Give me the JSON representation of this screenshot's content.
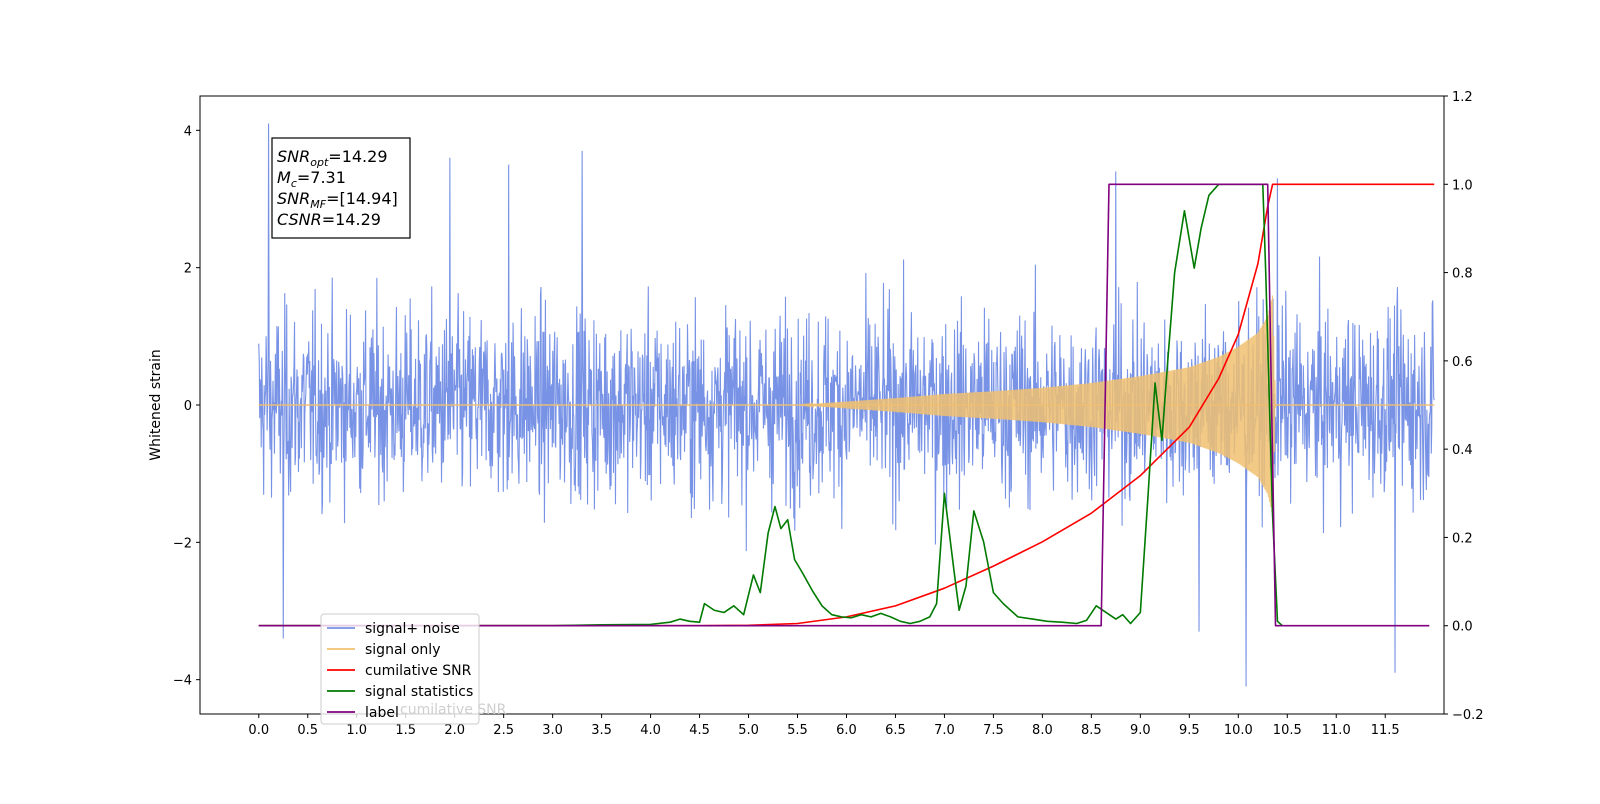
{
  "chart_data": {
    "type": "line",
    "title": "",
    "xlabel": "",
    "ylabel": "Whitened strain",
    "xlim": [
      -0.6,
      12.1
    ],
    "ylim": [
      -4.5,
      4.5
    ],
    "y2lim": [
      -0.2,
      1.2
    ],
    "x_ticks": [
      "0.0",
      "0.5",
      "1.0",
      "1.5",
      "2.0",
      "2.5",
      "3.0",
      "3.5",
      "4.0",
      "4.5",
      "5.0",
      "5.5",
      "6.0",
      "6.5",
      "7.0",
      "7.5",
      "8.0",
      "8.5",
      "9.0",
      "9.5",
      "10.0",
      "10.5",
      "11.0",
      "11.5"
    ],
    "y_ticks": [
      "4",
      "2",
      "0",
      "−2",
      "−4"
    ],
    "y_tick_values": [
      4,
      2,
      0,
      -2,
      -4
    ],
    "y2_ticks": [
      "1.2",
      "1.0",
      "0.8",
      "0.6",
      "0.4",
      "0.2",
      "0.0",
      "−0.2"
    ],
    "y2_tick_values": [
      1.2,
      1.0,
      0.8,
      0.6,
      0.4,
      0.2,
      0.0,
      -0.2
    ],
    "grid": false,
    "legend_position": "lower-left",
    "annotation": {
      "lines": [
        {
          "base": "SNR",
          "sub": "opt",
          "value": "=14.29"
        },
        {
          "base": "M",
          "sub": "c",
          "value": "=7.31"
        },
        {
          "base": "SNR",
          "sub": "MF",
          "value": "=[14.94]"
        },
        {
          "base": "CSNR",
          "sub": "",
          "value": "=14.29"
        }
      ]
    },
    "series": [
      {
        "name": "signal+ noise",
        "color": "#7893e6",
        "axis": "left",
        "style": "noise",
        "x_range": [
          0.0,
          12.0
        ],
        "typical_envelope": [
          -1.9,
          1.9
        ],
        "notable_peaks": [
          [
            0.1,
            4.1
          ],
          [
            0.25,
            -3.4
          ],
          [
            1.95,
            3.6
          ],
          [
            2.55,
            3.5
          ],
          [
            3.3,
            3.7
          ],
          [
            9.6,
            -3.3
          ],
          [
            10.08,
            -4.1
          ],
          [
            10.4,
            3.3
          ],
          [
            11.6,
            -3.9
          ],
          [
            8.75,
            3.4
          ]
        ]
      },
      {
        "name": "signal only",
        "color": "#f0c070",
        "axis": "left",
        "style": "chirp",
        "x_range": [
          0.0,
          12.0
        ],
        "envelope": [
          [
            5.5,
            0.0
          ],
          [
            6.0,
            0.05
          ],
          [
            6.5,
            0.1
          ],
          [
            7.0,
            0.16
          ],
          [
            7.5,
            0.2
          ],
          [
            8.0,
            0.25
          ],
          [
            8.5,
            0.32
          ],
          [
            9.0,
            0.42
          ],
          [
            9.5,
            0.55
          ],
          [
            9.8,
            0.7
          ],
          [
            10.0,
            0.85
          ],
          [
            10.2,
            1.05
          ],
          [
            10.3,
            1.3
          ],
          [
            10.35,
            1.6
          ],
          [
            10.38,
            0.0
          ]
        ]
      },
      {
        "name": "cumilative SNR",
        "color": "#ff0000",
        "axis": "right",
        "points": [
          [
            0.0,
            0.0
          ],
          [
            4.5,
            0.0
          ],
          [
            5.0,
            0.001
          ],
          [
            5.5,
            0.005
          ],
          [
            6.0,
            0.02
          ],
          [
            6.5,
            0.045
          ],
          [
            7.0,
            0.085
          ],
          [
            7.5,
            0.135
          ],
          [
            8.0,
            0.19
          ],
          [
            8.5,
            0.255
          ],
          [
            9.0,
            0.34
          ],
          [
            9.5,
            0.45
          ],
          [
            9.8,
            0.56
          ],
          [
            10.0,
            0.66
          ],
          [
            10.2,
            0.82
          ],
          [
            10.3,
            0.95
          ],
          [
            10.35,
            1.0
          ],
          [
            12.0,
            1.0
          ]
        ]
      },
      {
        "name": "signal statistics",
        "color": "#007a00",
        "axis": "right",
        "points": [
          [
            0.0,
            0.0
          ],
          [
            3.0,
            0.0
          ],
          [
            3.5,
            0.002
          ],
          [
            4.0,
            0.003
          ],
          [
            4.2,
            0.008
          ],
          [
            4.3,
            0.015
          ],
          [
            4.4,
            0.01
          ],
          [
            4.5,
            0.008
          ],
          [
            4.55,
            0.05
          ],
          [
            4.65,
            0.035
          ],
          [
            4.75,
            0.03
          ],
          [
            4.85,
            0.045
          ],
          [
            4.95,
            0.025
          ],
          [
            5.05,
            0.115
          ],
          [
            5.12,
            0.075
          ],
          [
            5.2,
            0.21
          ],
          [
            5.27,
            0.27
          ],
          [
            5.33,
            0.22
          ],
          [
            5.4,
            0.24
          ],
          [
            5.47,
            0.15
          ],
          [
            5.55,
            0.12
          ],
          [
            5.65,
            0.08
          ],
          [
            5.75,
            0.045
          ],
          [
            5.85,
            0.025
          ],
          [
            5.95,
            0.02
          ],
          [
            6.05,
            0.018
          ],
          [
            6.15,
            0.025
          ],
          [
            6.25,
            0.02
          ],
          [
            6.35,
            0.028
          ],
          [
            6.45,
            0.02
          ],
          [
            6.55,
            0.01
          ],
          [
            6.65,
            0.005
          ],
          [
            6.75,
            0.01
          ],
          [
            6.85,
            0.02
          ],
          [
            6.92,
            0.05
          ],
          [
            7.0,
            0.3
          ],
          [
            7.1,
            0.12
          ],
          [
            7.15,
            0.035
          ],
          [
            7.22,
            0.09
          ],
          [
            7.3,
            0.26
          ],
          [
            7.4,
            0.19
          ],
          [
            7.5,
            0.075
          ],
          [
            7.6,
            0.05
          ],
          [
            7.75,
            0.02
          ],
          [
            7.9,
            0.015
          ],
          [
            8.05,
            0.01
          ],
          [
            8.2,
            0.008
          ],
          [
            8.35,
            0.005
          ],
          [
            8.45,
            0.012
          ],
          [
            8.55,
            0.045
          ],
          [
            8.65,
            0.03
          ],
          [
            8.75,
            0.015
          ],
          [
            8.82,
            0.025
          ],
          [
            8.9,
            0.005
          ],
          [
            9.0,
            0.03
          ],
          [
            9.08,
            0.3
          ],
          [
            9.15,
            0.55
          ],
          [
            9.22,
            0.42
          ],
          [
            9.28,
            0.6
          ],
          [
            9.35,
            0.8
          ],
          [
            9.45,
            0.94
          ],
          [
            9.55,
            0.81
          ],
          [
            9.62,
            0.9
          ],
          [
            9.7,
            0.975
          ],
          [
            9.8,
            1.0
          ],
          [
            10.25,
            1.0
          ],
          [
            10.28,
            0.8
          ],
          [
            10.35,
            0.25
          ],
          [
            10.4,
            0.01
          ],
          [
            10.45,
            0.0
          ]
        ]
      },
      {
        "name": "label",
        "color": "#800080",
        "axis": "right",
        "points": [
          [
            0.0,
            0.0
          ],
          [
            8.6,
            0.0
          ],
          [
            8.68,
            1.0
          ],
          [
            10.3,
            1.0
          ],
          [
            10.38,
            0.0
          ],
          [
            11.95,
            0.0
          ]
        ]
      }
    ],
    "legend_overlay_text": "cumilative SNR"
  }
}
